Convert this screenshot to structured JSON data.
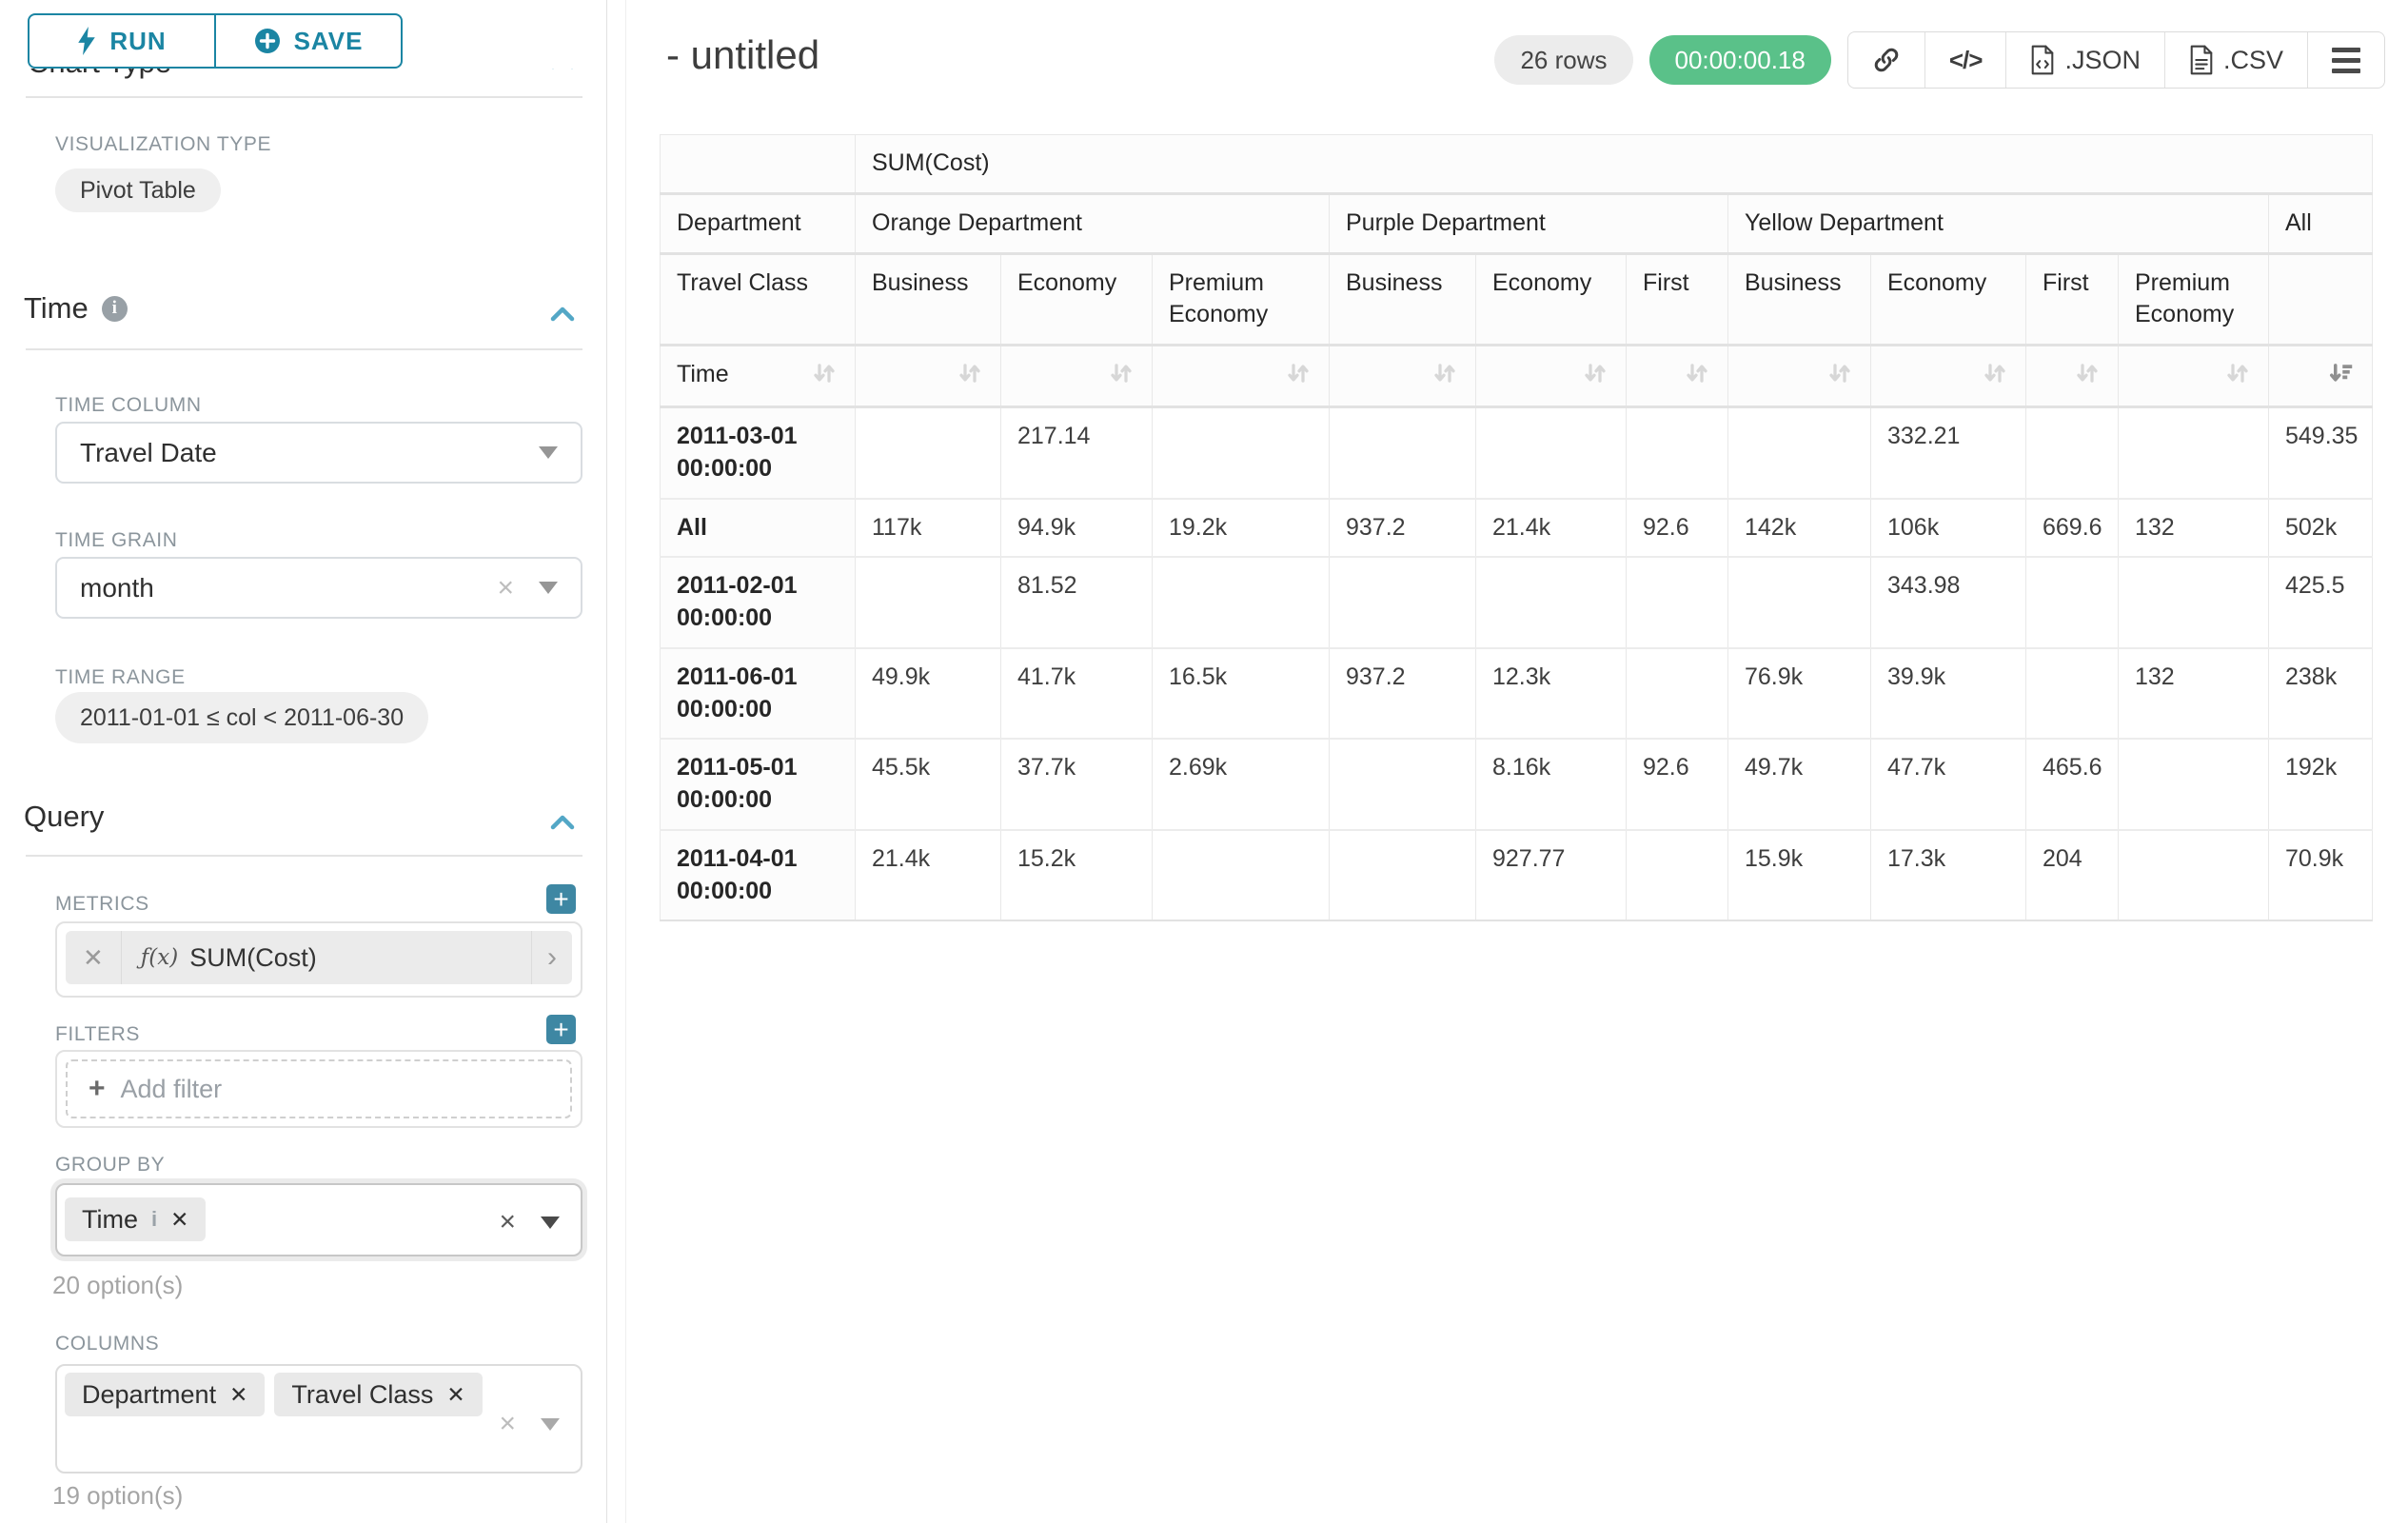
{
  "colors": {
    "accent_teal": "#1b85a3",
    "plus_button_teal": "#3e87a3",
    "chevron_blue": "#53a7c6",
    "success_green": "#5ac189"
  },
  "toolbar": {
    "run_label": "RUN",
    "save_label": "SAVE"
  },
  "sidebar": {
    "chart_type_heading": "Chart Type",
    "viz_type": {
      "label": "VISUALIZATION TYPE",
      "value": "Pivot Table"
    },
    "time_section": {
      "title": "Time",
      "time_column": {
        "label": "TIME COLUMN",
        "value": "Travel Date"
      },
      "time_grain": {
        "label": "TIME GRAIN",
        "value": "month"
      },
      "time_range": {
        "label": "TIME RANGE",
        "value": "2011-01-01 ≤ col < 2011-06-30"
      }
    },
    "query_section": {
      "title": "Query",
      "metrics": {
        "label": "METRICS",
        "metric_prefix": "ƒ(x)",
        "metric_name": "SUM(Cost)"
      },
      "filters": {
        "label": "FILTERS",
        "placeholder": "Add filter"
      },
      "group_by": {
        "label": "GROUP BY",
        "tag": "Time",
        "options_hint": "20 option(s)"
      },
      "columns": {
        "label": "COLUMNS",
        "tag1": "Department",
        "tag2": "Travel Class",
        "options_hint": "19 option(s)"
      }
    }
  },
  "header": {
    "title": "- untitled",
    "row_count_badge": "26 rows",
    "duration_badge": "00:00:00.18",
    "export_json_label": ".JSON",
    "export_csv_label": ".CSV"
  },
  "pivot_table": {
    "metric_label": "SUM(Cost)",
    "dept_label": "Department",
    "class_label": "Travel Class",
    "time_label": "Time",
    "col_groups": [
      {
        "name": "Orange Department",
        "cols": [
          "Business",
          "Economy",
          "Premium Economy"
        ]
      },
      {
        "name": "Purple Department",
        "cols": [
          "Business",
          "Economy",
          "First"
        ]
      },
      {
        "name": "Yellow Department",
        "cols": [
          "Business",
          "Economy",
          "First",
          "Premium Economy"
        ]
      },
      {
        "name": "All",
        "cols": [
          ""
        ]
      }
    ],
    "sorted_col_index": 10,
    "rows": [
      {
        "label": "2011-03-01 00:00:00",
        "values": [
          "",
          "217.14",
          "",
          "",
          "",
          "",
          "",
          "332.21",
          "",
          "",
          "549.35"
        ]
      },
      {
        "label": "All",
        "values": [
          "117k",
          "94.9k",
          "19.2k",
          "937.2",
          "21.4k",
          "92.6",
          "142k",
          "106k",
          "669.6",
          "132",
          "502k"
        ]
      },
      {
        "label": "2011-02-01 00:00:00",
        "values": [
          "",
          "81.52",
          "",
          "",
          "",
          "",
          "",
          "343.98",
          "",
          "",
          "425.5"
        ]
      },
      {
        "label": "2011-06-01 00:00:00",
        "values": [
          "49.9k",
          "41.7k",
          "16.5k",
          "937.2",
          "12.3k",
          "",
          "76.9k",
          "39.9k",
          "",
          "132",
          "238k"
        ]
      },
      {
        "label": "2011-05-01 00:00:00",
        "values": [
          "45.5k",
          "37.7k",
          "2.69k",
          "",
          "8.16k",
          "92.6",
          "49.7k",
          "47.7k",
          "465.6",
          "",
          "192k"
        ]
      },
      {
        "label": "2011-04-01 00:00:00",
        "values": [
          "21.4k",
          "15.2k",
          "",
          "",
          "927.77",
          "",
          "15.9k",
          "17.3k",
          "204",
          "",
          "70.9k"
        ]
      }
    ]
  }
}
